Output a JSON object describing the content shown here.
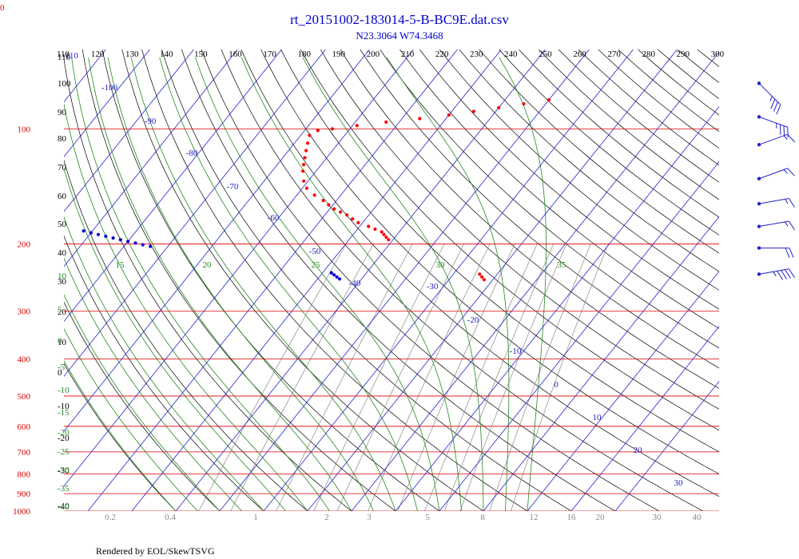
{
  "chart_data": {
    "type": "scatter",
    "subtype": "skew-T log-P diagram",
    "title": "rt_20151002-183014-5-B-BC9E.dat.csv",
    "subtitle": "N23.3064 W74.3468",
    "corner_label": "0",
    "footer": "Rendered by EOL/SkewTSVG",
    "colors": {
      "title": "#0000cc",
      "pressure": "#dd0000",
      "temperature": "#2222cc",
      "dry_adiabat": "#000000",
      "moist_adiabat": "#228822",
      "mixing_ratio": "#888888",
      "trace_temperature": "#ff0000",
      "trace_dewpoint": "#0000cc",
      "wind": "#2222cc"
    },
    "pressure_levels_hpa": [
      100,
      200,
      300,
      400,
      500,
      600,
      700,
      800,
      900,
      1000
    ],
    "top_potential_temperature_labels": [
      "110",
      "120",
      "130",
      "140",
      "150",
      "160",
      "170",
      "180",
      "190",
      "200",
      "210",
      "220",
      "230",
      "240",
      "250",
      "260",
      "270",
      "280",
      "290",
      "300"
    ],
    "left_potential_temperature_labels": [
      "110",
      "100",
      "90",
      "80",
      "70",
      "60",
      "50",
      "40",
      "30",
      "20",
      "10",
      "0",
      "-10",
      "-20",
      "-30",
      "-40"
    ],
    "temperature_labels": [
      "-110",
      "-100",
      "-90",
      "-80",
      "-70",
      "-60",
      "-50",
      "-40",
      "-30",
      "-20",
      "-10",
      "0",
      "10",
      "20",
      "30"
    ],
    "moist_adiabat_labels_top": [
      "15",
      "20",
      "25",
      "30",
      "35"
    ],
    "moist_adiabat_labels_left": [
      "10",
      "5",
      "0",
      "-5",
      "-10",
      "-15",
      "-20",
      "-25",
      "-30",
      "-35",
      "-40"
    ],
    "mixing_ratio_labels": [
      "0.2",
      "0.4",
      "1",
      "2",
      "3",
      "5",
      "8",
      "12",
      "16",
      "20",
      "30",
      "40"
    ],
    "series": [
      {
        "name": "Temperature",
        "x": [
          -41,
          -42,
          -43,
          -44,
          -46,
          -48,
          -51,
          -53,
          -55,
          -57,
          -59,
          -61,
          -63,
          -66,
          -69,
          -71,
          -73,
          -74,
          -75,
          -76,
          -77,
          -78,
          -77,
          -74,
          -69,
          -63,
          -56,
          -50,
          -45,
          -40,
          -35,
          -30
        ],
        "y": [
          195,
          192,
          189,
          186,
          183,
          180,
          176,
          172,
          168,
          165,
          162,
          158,
          154,
          149,
          143,
          137,
          129,
          124,
          119,
          114,
          109,
          104,
          101,
          100,
          98,
          96,
          94,
          92,
          90,
          88,
          86,
          84
        ]
      },
      {
        "name": "Temperature (low-level segment)",
        "x": [
          -12,
          -13,
          -14
        ],
        "y": [
          248,
          244,
          240
        ]
      },
      {
        "name": "Dewpoint",
        "x": [
          -112,
          -110,
          -108,
          -106,
          -104,
          -102,
          -100,
          -98,
          -96,
          -94
        ],
        "y": [
          185,
          187,
          189,
          191,
          193,
          195,
          197,
          199,
          201,
          203
        ]
      },
      {
        "name": "Dewpoint (low-level segment)",
        "x": [
          -45,
          -46,
          -47,
          -48
        ],
        "y": [
          247,
          244,
          241,
          238
        ]
      }
    ],
    "wind_barbs": [
      {
        "p": 76,
        "direction": 315,
        "speed_kt": 35
      },
      {
        "p": 93,
        "direction": 290,
        "speed_kt": 35
      },
      {
        "p": 110,
        "direction": 250,
        "speed_kt": 15
      },
      {
        "p": 135,
        "direction": 250,
        "speed_kt": 15
      },
      {
        "p": 157,
        "direction": 260,
        "speed_kt": 15
      },
      {
        "p": 180,
        "direction": 260,
        "speed_kt": 15
      },
      {
        "p": 205,
        "direction": 270,
        "speed_kt": 20
      },
      {
        "p": 240,
        "direction": 260,
        "speed_kt": 45
      }
    ]
  }
}
